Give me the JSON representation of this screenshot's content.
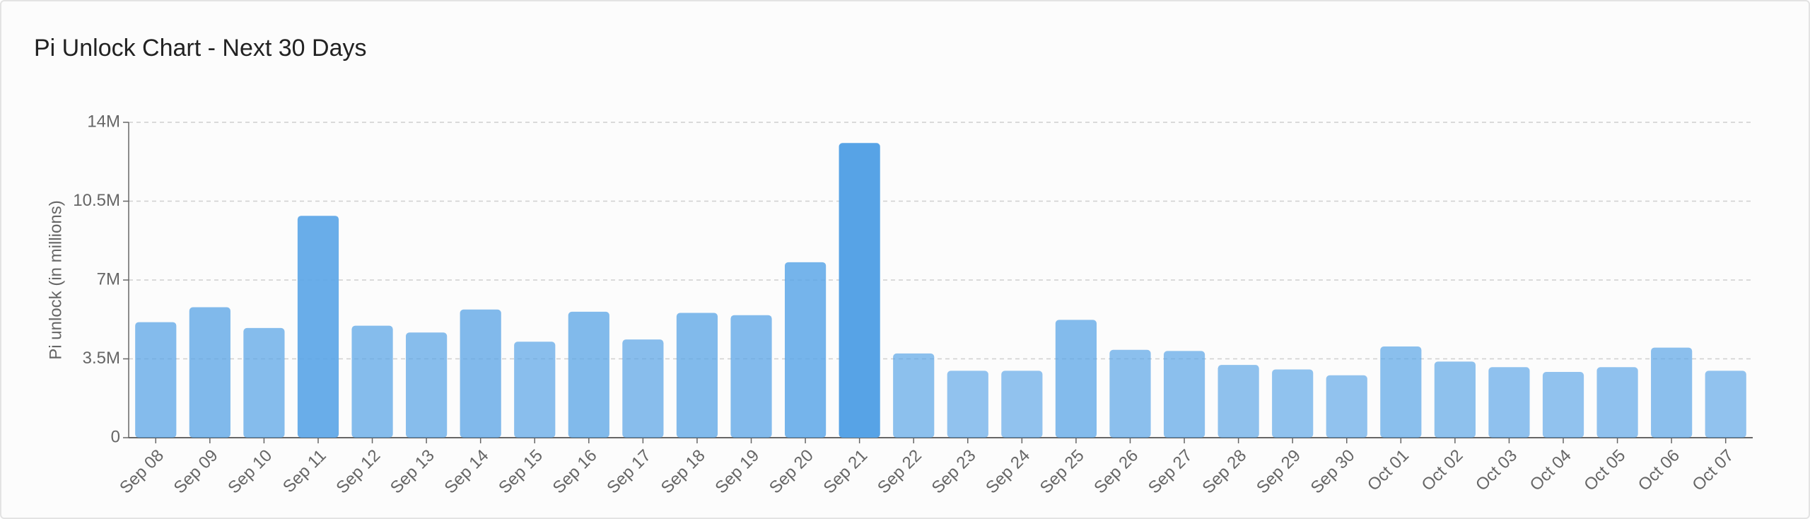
{
  "chart_data": {
    "type": "bar",
    "title": "Pi Unlock Chart - Next 30 Days",
    "y_label": "Pi unlock (in millions)",
    "categories": [
      "Sep 08",
      "Sep 09",
      "Sep 10",
      "Sep 11",
      "Sep 12",
      "Sep 13",
      "Sep 14",
      "Sep 15",
      "Sep 16",
      "Sep 17",
      "Sep 18",
      "Sep 19",
      "Sep 20",
      "Sep 21",
      "Sep 22",
      "Sep 23",
      "Sep 24",
      "Sep 25",
      "Sep 26",
      "Sep 27",
      "Sep 28",
      "Sep 29",
      "Sep 30",
      "Oct 01",
      "Oct 02",
      "Oct 03",
      "Oct 04",
      "Oct 05",
      "Oct 06",
      "Oct 07"
    ],
    "values": [
      5130000,
      5790000,
      4870000,
      9850000,
      4970000,
      4670000,
      5690000,
      4260000,
      5590000,
      4360000,
      5540000,
      5440000,
      7790000,
      13080000,
      3740000,
      2970000,
      2970000,
      5230000,
      3900000,
      3850000,
      3230000,
      3030000,
      2770000,
      4050000,
      3380000,
      3130000,
      2920000,
      3130000,
      4000000,
      2970000
    ],
    "color": "#57a3e6",
    "ylim": [
      0,
      14000000
    ],
    "yticks": [
      0,
      {
        "value": 3500000,
        "label": "3.5M"
      },
      {
        "value": 7000000,
        "label": "7M"
      },
      {
        "value": 10500000,
        "label": "10.5M"
      },
      {
        "value": 14000000,
        "label": "14M"
      }
    ],
    "grid": true
  }
}
